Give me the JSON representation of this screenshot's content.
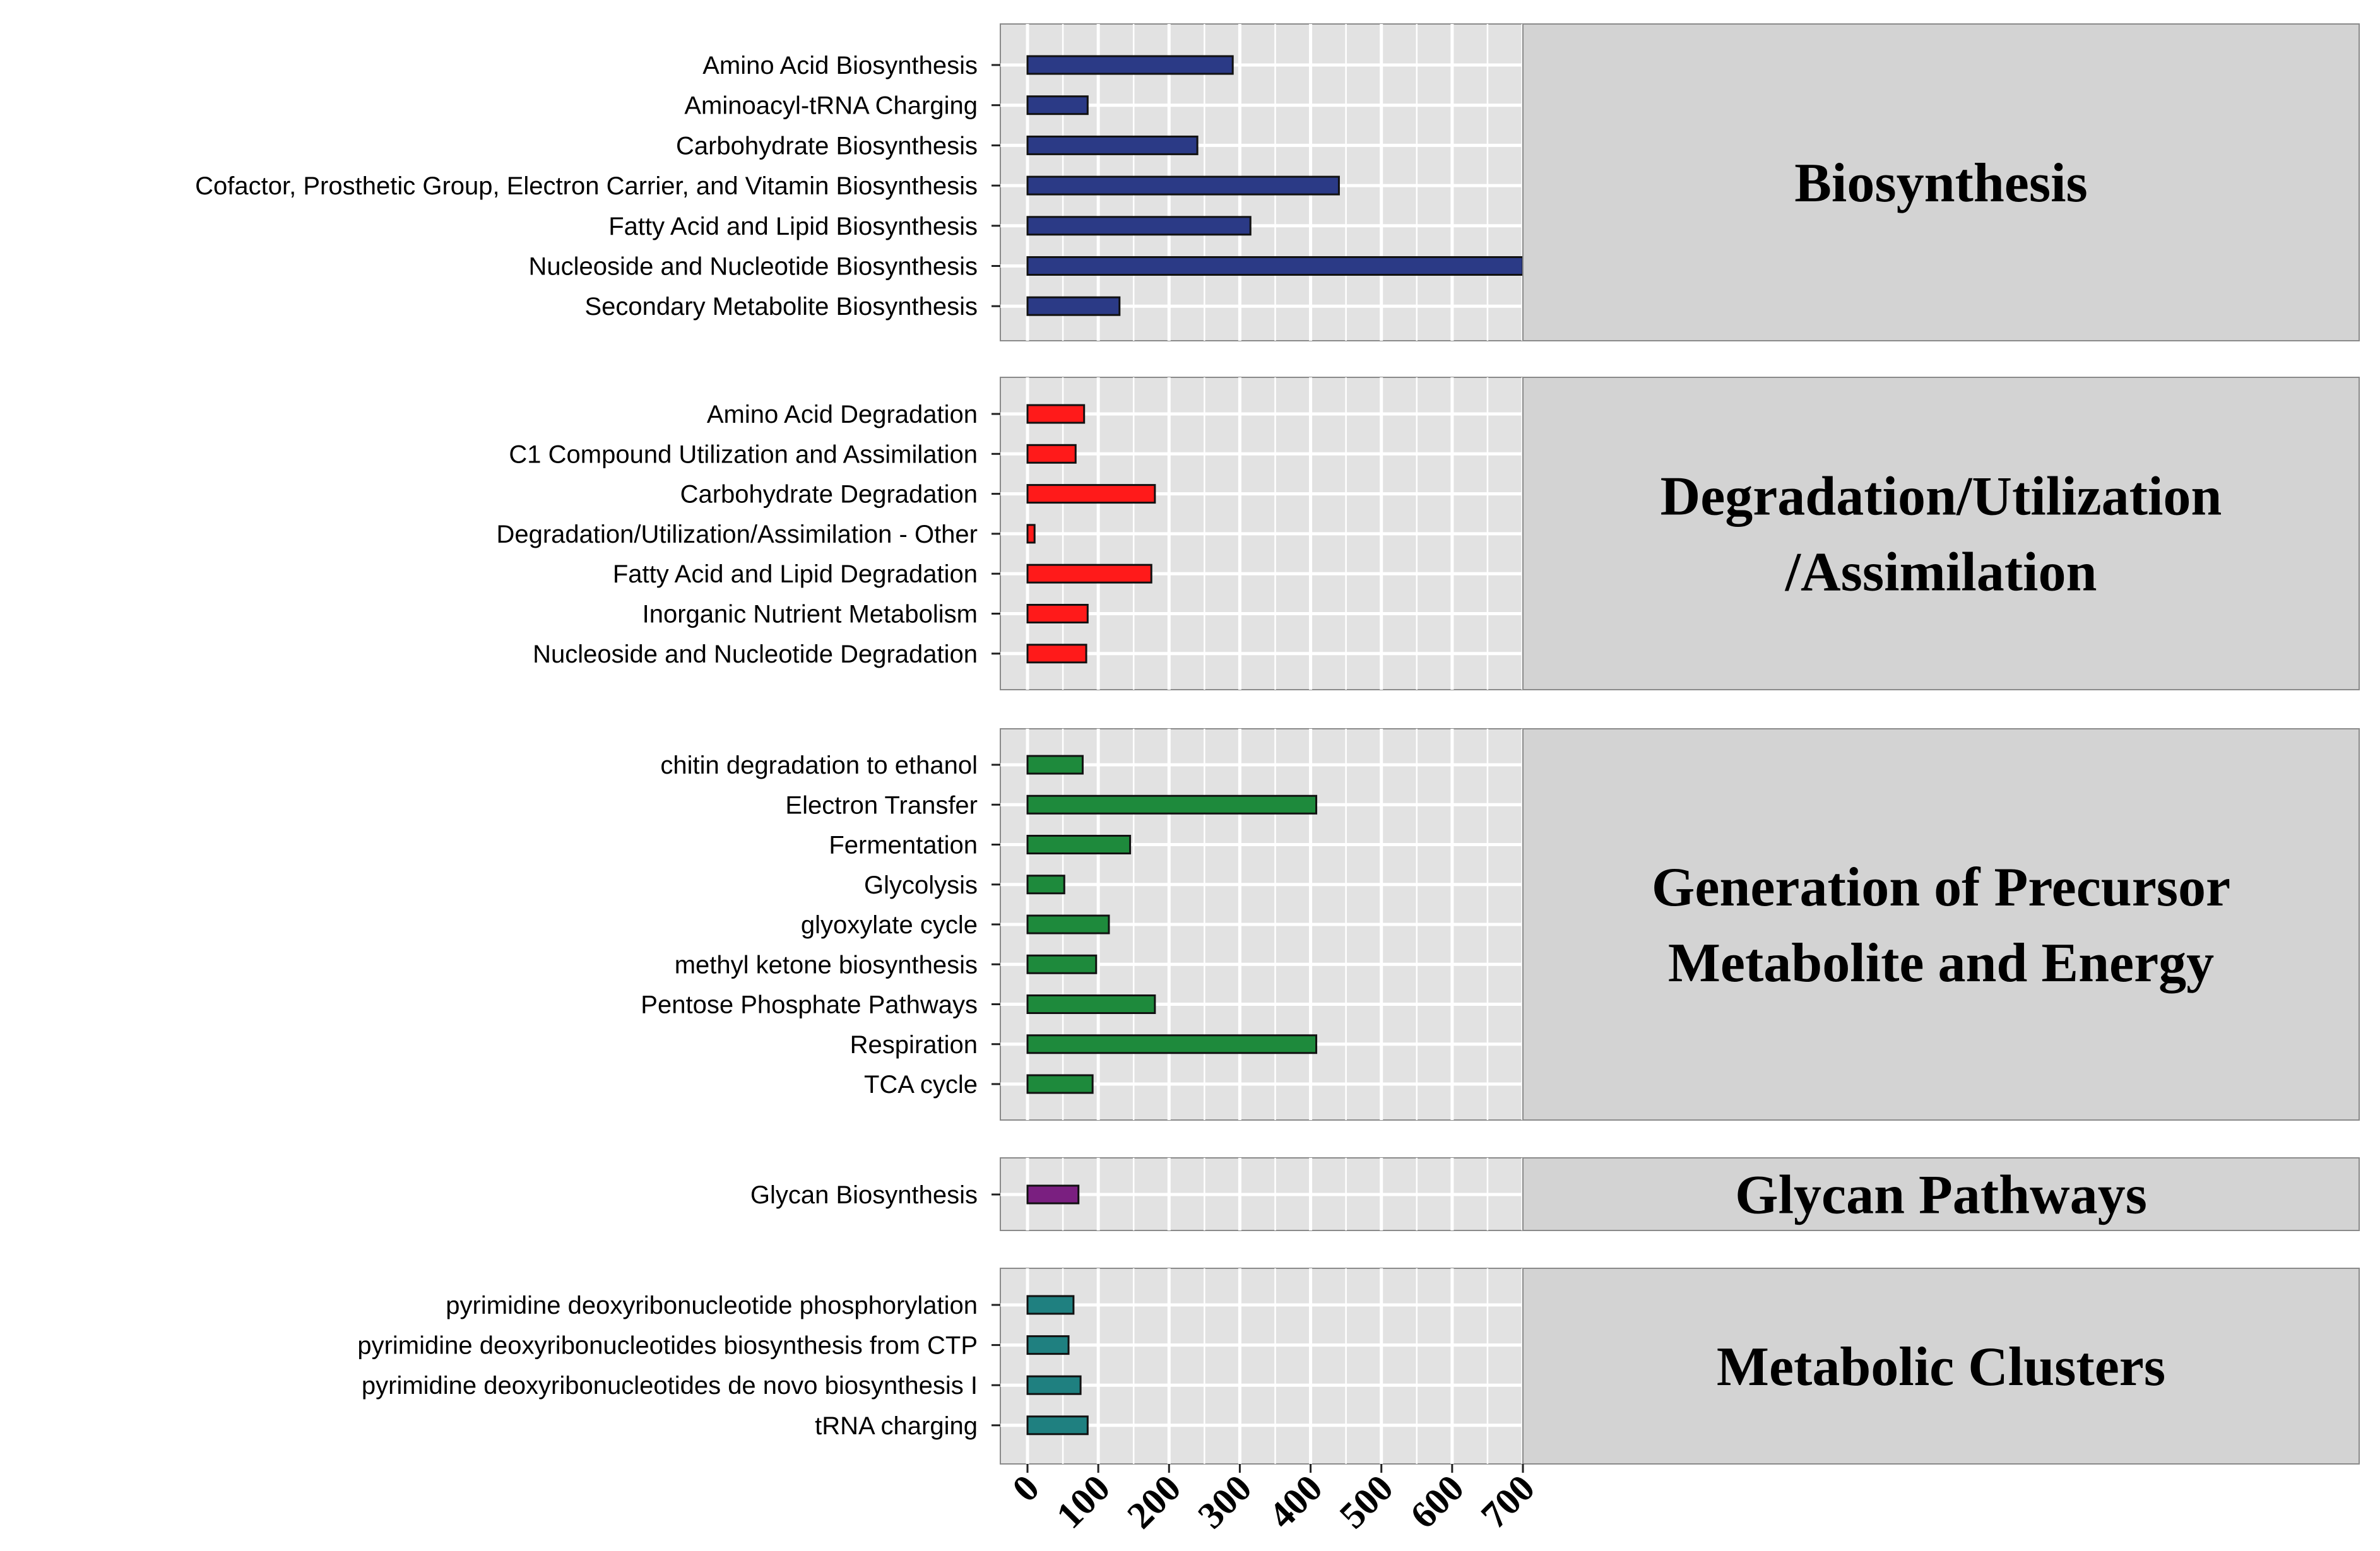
{
  "chart_data": {
    "type": "bar",
    "orientation": "horizontal",
    "xlim": [
      0,
      700
    ],
    "xticks": [
      0,
      100,
      200,
      300,
      400,
      500,
      600,
      700
    ],
    "xlabel": "",
    "ylabel": "",
    "grid": true,
    "groups": [
      {
        "name": "Biosynthesis",
        "label_lines": [
          "Biosynthesis"
        ],
        "color": "#2b3a86",
        "categories": [
          "Amino Acid Biosynthesis",
          "Aminoacyl-tRNA Charging",
          "Carbohydrate Biosynthesis",
          "Cofactor, Prosthetic Group, Electron Carrier, and Vitamin Biosynthesis",
          "Fatty Acid and Lipid Biosynthesis",
          "Nucleoside and Nucleotide Biosynthesis",
          "Secondary Metabolite Biosynthesis"
        ],
        "values": [
          290,
          85,
          240,
          440,
          315,
          700,
          130
        ]
      },
      {
        "name": "Degradation/Utilization/Assimilation",
        "label_lines": [
          "Degradation/Utilization",
          "/Assimilation"
        ],
        "color": "#ff1a1a",
        "categories": [
          "Amino Acid Degradation",
          "C1 Compound Utilization and Assimilation",
          "Carbohydrate Degradation",
          "Degradation/Utilization/Assimilation - Other",
          "Fatty Acid and Lipid Degradation",
          "Inorganic Nutrient Metabolism",
          "Nucleoside and Nucleotide Degradation"
        ],
        "values": [
          80,
          68,
          180,
          10,
          175,
          85,
          83
        ]
      },
      {
        "name": "Generation of Precursor Metabolite and Energy",
        "label_lines": [
          "Generation of Precursor",
          "Metabolite and Energy"
        ],
        "color": "#1e8a3c",
        "categories": [
          "chitin degradation to ethanol",
          "Electron Transfer",
          "Fermentation",
          "Glycolysis",
          "glyoxylate cycle",
          "methyl ketone biosynthesis",
          "Pentose Phosphate Pathways",
          "Respiration",
          "TCA cycle"
        ],
        "values": [
          78,
          408,
          145,
          52,
          115,
          97,
          180,
          408,
          92
        ]
      },
      {
        "name": "Glycan Pathways",
        "label_lines": [
          "Glycan Pathways"
        ],
        "color": "#7a1f80",
        "categories": [
          "Glycan Biosynthesis"
        ],
        "values": [
          72
        ]
      },
      {
        "name": "Metabolic Clusters",
        "label_lines": [
          "Metabolic Clusters"
        ],
        "color": "#1f8080",
        "categories": [
          "pyrimidine deoxyribonucleotide phosphorylation",
          "pyrimidine deoxyribonucleotides biosynthesis from CTP",
          "pyrimidine deoxyribonucleotides de novo biosynthesis I",
          "tRNA charging"
        ],
        "values": [
          65,
          58,
          75,
          85
        ]
      }
    ]
  }
}
